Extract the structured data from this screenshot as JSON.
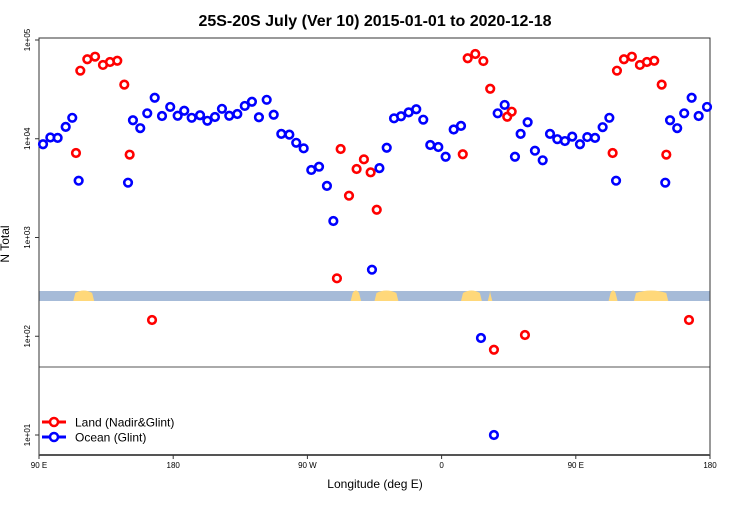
{
  "chart_data": {
    "type": "scatter",
    "title": "25S-20S July (Ver 10)   2015-01-01 to 2020-12-18",
    "xlabel": "Longitude (deg E)",
    "ylabel": "N Total",
    "y_scale": "log",
    "xlim": [
      90,
      540
    ],
    "ylim": [
      6,
      100000
    ],
    "x_ticks": [
      {
        "value": 90,
        "label": "90 E"
      },
      {
        "value": 180,
        "label": "180"
      },
      {
        "value": 270,
        "label": "90 W"
      },
      {
        "value": 360,
        "label": "0"
      },
      {
        "value": 450,
        "label": "90 E"
      },
      {
        "value": 540,
        "label": "180"
      }
    ],
    "y_ticks": [
      {
        "value": 100000,
        "label": "1e+05"
      },
      {
        "value": 10000,
        "label": "1e+04"
      },
      {
        "value": 1000,
        "label": "1e+03"
      },
      {
        "value": 100,
        "label": "1e+02"
      },
      {
        "value": 10,
        "label": "1e+01"
      }
    ],
    "legend": {
      "placement": "bottom-left"
    },
    "land_strip": {
      "ocean_color": "#a6bbd8",
      "land_color": "#ffd87a",
      "land_segments_lon": [
        [
          113,
          127
        ],
        [
          299,
          306
        ],
        [
          315,
          331
        ],
        [
          373,
          387
        ],
        [
          391,
          394
        ],
        [
          472,
          478
        ],
        [
          489,
          512
        ]
      ]
    },
    "series": [
      {
        "name": "Land (Nadir&Glint)",
        "color": "#ff0000",
        "points": [
          [
            114.8,
            7170
          ],
          [
            117.7,
            48900
          ],
          [
            122.4,
            63800
          ],
          [
            127.6,
            67800
          ],
          [
            132.9,
            55900
          ],
          [
            137.6,
            59900
          ],
          [
            142.5,
            61600
          ],
          [
            147.2,
            35300
          ],
          [
            150.8,
            6900
          ],
          [
            165.8,
            146
          ],
          [
            289.8,
            386
          ],
          [
            292.3,
            7870
          ],
          [
            297.9,
            2650
          ],
          [
            303,
            4940
          ],
          [
            307.9,
            6190
          ],
          [
            312.4,
            4570
          ],
          [
            316.5,
            1910
          ],
          [
            374.2,
            6970
          ],
          [
            377.5,
            65300
          ],
          [
            382.6,
            72100
          ],
          [
            388,
            61200
          ],
          [
            392.6,
            32100
          ],
          [
            395.1,
            73
          ],
          [
            404,
            16700
          ],
          [
            407,
            18800
          ],
          [
            415.9,
            103
          ],
          [
            474.7,
            7170
          ],
          [
            477.6,
            48900
          ],
          [
            482.3,
            63800
          ],
          [
            487.6,
            67800
          ],
          [
            493,
            55900
          ],
          [
            497.7,
            59900
          ],
          [
            502.6,
            61600
          ],
          [
            507.6,
            35300
          ],
          [
            510.7,
            6900
          ],
          [
            525.9,
            146
          ]
        ]
      },
      {
        "name": "Ocean (Glint)",
        "color": "#0000ff",
        "points": [
          [
            92.7,
            8800
          ],
          [
            97.6,
            10300
          ],
          [
            102.5,
            10200
          ],
          [
            107.9,
            13200
          ],
          [
            112.3,
            16300
          ],
          [
            116.6,
            3760
          ],
          [
            149.7,
            3590
          ],
          [
            153,
            15400
          ],
          [
            157.9,
            12800
          ],
          [
            162.6,
            18100
          ],
          [
            167.6,
            26000
          ],
          [
            172.5,
            17000
          ],
          [
            178,
            21000
          ],
          [
            183,
            17100
          ],
          [
            187.4,
            19200
          ],
          [
            192.4,
            16300
          ],
          [
            198,
            17300
          ],
          [
            202.9,
            15200
          ],
          [
            208,
            16600
          ],
          [
            212.7,
            20100
          ],
          [
            217.6,
            17100
          ],
          [
            223,
            17800
          ],
          [
            228,
            21500
          ],
          [
            232.8,
            23700
          ],
          [
            237.5,
            16500
          ],
          [
            242.7,
            24800
          ],
          [
            247.4,
            17500
          ],
          [
            252.5,
            11200
          ],
          [
            257.9,
            11000
          ],
          [
            262.5,
            9100
          ],
          [
            267.5,
            8000
          ],
          [
            272.6,
            4830
          ],
          [
            277.8,
            5210
          ],
          [
            283.1,
            3330
          ],
          [
            287.4,
            1470
          ],
          [
            313.3,
            472
          ],
          [
            318.3,
            5040
          ],
          [
            323.2,
            8100
          ],
          [
            328.1,
            16100
          ],
          [
            332.8,
            16900
          ],
          [
            337.9,
            18500
          ],
          [
            343,
            19900
          ],
          [
            347.7,
            15600
          ],
          [
            352.4,
            8650
          ],
          [
            357.8,
            8250
          ],
          [
            362.7,
            6570
          ],
          [
            368.1,
            12400
          ],
          [
            373,
            13500
          ],
          [
            386.4,
            96
          ],
          [
            395.1,
            10
          ],
          [
            397.6,
            18100
          ],
          [
            402.3,
            22000
          ],
          [
            409.2,
            6570
          ],
          [
            413,
            11200
          ],
          [
            417.7,
            14700
          ],
          [
            422.6,
            7570
          ],
          [
            427.8,
            6050
          ],
          [
            432.7,
            11200
          ],
          [
            437.6,
            9900
          ],
          [
            442.7,
            9480
          ],
          [
            447.6,
            10500
          ],
          [
            452.8,
            8800
          ],
          [
            457.7,
            10400
          ],
          [
            462.9,
            10200
          ],
          [
            468,
            13100
          ],
          [
            472.5,
            16300
          ],
          [
            477,
            3760
          ],
          [
            510,
            3590
          ],
          [
            513.2,
            15400
          ],
          [
            518,
            12800
          ],
          [
            522.7,
            18100
          ],
          [
            527.7,
            26000
          ],
          [
            532.4,
            17000
          ],
          [
            538,
            21000
          ]
        ]
      }
    ]
  }
}
